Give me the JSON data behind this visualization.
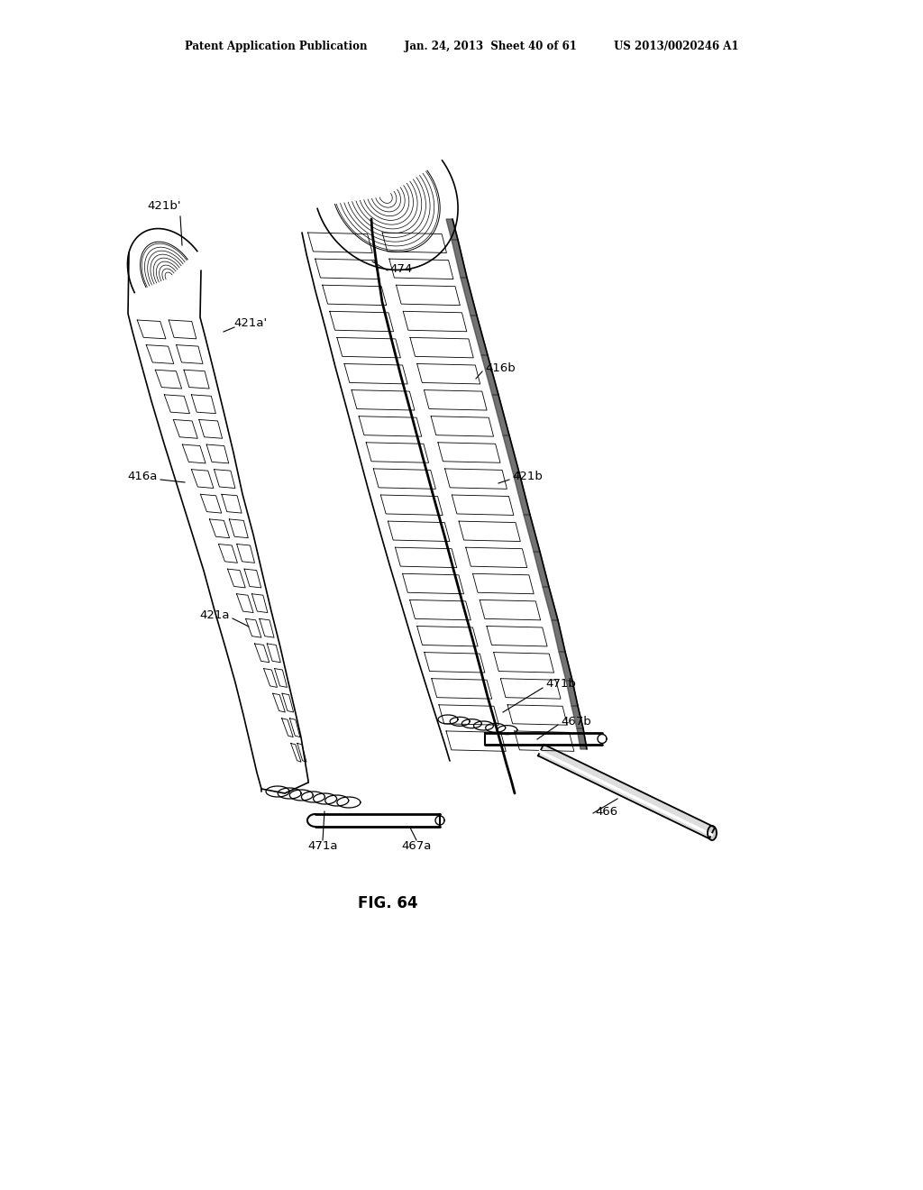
{
  "background_color": "#ffffff",
  "header_text": "Patent Application Publication          Jan. 24, 2013  Sheet 40 of 61          US 2013/0020246 A1",
  "figure_label": "FIG. 64",
  "labels": {
    "421b_prime": "421b'",
    "421a_prime": "421a'",
    "416a": "416a",
    "421a": "421a",
    "474": "474",
    "416b": "416b",
    "421b": "421b",
    "471b": "471b",
    "467b": "467b",
    "471a": "471a",
    "467a": "467a",
    "466": "466"
  }
}
